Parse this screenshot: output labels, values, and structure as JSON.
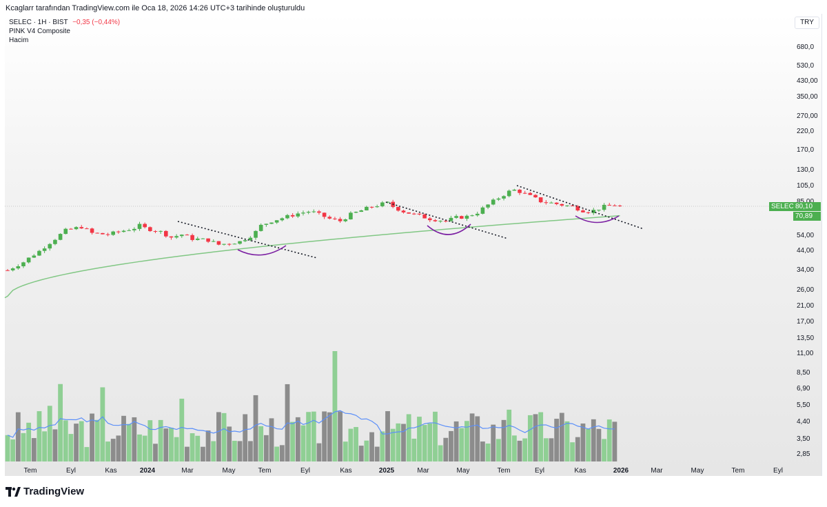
{
  "header": {
    "attribution": "Kcaglarr tarafından TradingView.com ile Oca 18, 2026 14:26 UTC+3 tarihinde oluşturuldu"
  },
  "legend": {
    "symbol_line": "SELEC · 1H · BIST",
    "change": "−0,35 (−0,44%)",
    "indicator_1": "PINK V4 Composite",
    "indicator_2": "Hacim"
  },
  "currency": "TRY",
  "price_axis": {
    "labels": [
      "680,0",
      "530,0",
      "430,00",
      "350,00",
      "270,00",
      "220,0",
      "170,0",
      "130,0",
      "105,0",
      "85,00",
      "54,00",
      "44,00",
      "34,00",
      "26,00",
      "21,00",
      "17,00",
      "13,50",
      "11,00",
      "8,50",
      "6,90",
      "5,50",
      "4,40",
      "3,50",
      "2,85"
    ],
    "symbol_tag": "SELEC",
    "last_price": "80,10",
    "ma_value": "70,89"
  },
  "time_axis": {
    "labels": [
      "Tem",
      "Eyl",
      "Kas",
      "2024",
      "Mar",
      "May",
      "Tem",
      "Eyl",
      "Kas",
      "2025",
      "Mar",
      "May",
      "Tem",
      "Eyl",
      "Kas",
      "2026",
      "Mar",
      "May",
      "Tem",
      "Eyl"
    ],
    "bold": [
      "2024",
      "2025",
      "2026"
    ]
  },
  "colors": {
    "up": "#4caf50",
    "down": "#f23645",
    "ma": "#81c784",
    "volume_up": "#8fcf94",
    "volume_down": "#8c8c8c",
    "volume_ma": "#5b8ff9",
    "arc": "#7b1fa2",
    "trendline": "#131722"
  },
  "chart_data": {
    "type": "candlestick",
    "symbol": "SELEC",
    "interval": "1H",
    "exchange": "BIST",
    "scale": "log",
    "series": [
      {
        "name": "SELEC",
        "description": "price path, weekly-style candles (approx.)",
        "path": [
          [
            0,
            34
          ],
          [
            3,
            38
          ],
          [
            6,
            44
          ],
          [
            9,
            52
          ],
          [
            11,
            58
          ],
          [
            13,
            60
          ],
          [
            14,
            61
          ],
          [
            16,
            56
          ],
          [
            19,
            55
          ],
          [
            22,
            58
          ],
          [
            24,
            60
          ],
          [
            25,
            62
          ],
          [
            26,
            60
          ],
          [
            29,
            57
          ],
          [
            31,
            53
          ],
          [
            33,
            55
          ],
          [
            35,
            52
          ],
          [
            38,
            51
          ],
          [
            40,
            48
          ],
          [
            42,
            49
          ],
          [
            44,
            50
          ],
          [
            46,
            54
          ],
          [
            47,
            57
          ],
          [
            48,
            62
          ],
          [
            50,
            66
          ],
          [
            53,
            70
          ],
          [
            55,
            73
          ],
          [
            57,
            75
          ],
          [
            58,
            74
          ],
          [
            61,
            68
          ],
          [
            63,
            66
          ],
          [
            65,
            72
          ],
          [
            67,
            76
          ],
          [
            69,
            80
          ],
          [
            71,
            83
          ],
          [
            72,
            84
          ],
          [
            73,
            80
          ],
          [
            75,
            75
          ],
          [
            77,
            72
          ],
          [
            80,
            68
          ],
          [
            83,
            66
          ],
          [
            85,
            69
          ],
          [
            87,
            70
          ],
          [
            89,
            74
          ],
          [
            91,
            82
          ],
          [
            93,
            90
          ],
          [
            95,
            98
          ],
          [
            96,
            100
          ],
          [
            97,
            98
          ],
          [
            99,
            92
          ],
          [
            101,
            86
          ],
          [
            103,
            84
          ],
          [
            105,
            82
          ],
          [
            107,
            80
          ],
          [
            109,
            76
          ],
          [
            110,
            75
          ],
          [
            111,
            76
          ],
          [
            113,
            80
          ],
          [
            115,
            82
          ],
          [
            116,
            80
          ]
        ]
      },
      {
        "name": "MA",
        "value_last": 70.89
      }
    ],
    "volume": {
      "name": "Hacim",
      "bars": [
        "u",
        "u",
        "d",
        "u",
        "u",
        "d",
        "u",
        "u",
        "u",
        "d",
        "u",
        "u",
        "u",
        "d",
        "u",
        "u",
        "d",
        "u",
        "u",
        "u",
        "d",
        "d",
        "d",
        "u",
        "d",
        "u",
        "u",
        "u",
        "d",
        "u",
        "d",
        "u",
        "u",
        "u",
        "d",
        "u",
        "u",
        "d",
        "d",
        "u",
        "d",
        "u",
        "d",
        "u",
        "d",
        "d",
        "d",
        "d",
        "u",
        "d",
        "d",
        "u",
        "d",
        "d",
        "u",
        "d",
        "u",
        "u",
        "u",
        "d",
        "d",
        "d",
        "u",
        "d",
        "u",
        "u",
        "u",
        "d",
        "u",
        "d",
        "d",
        "u",
        "d",
        "u",
        "u",
        "d",
        "u",
        "u",
        "u",
        "u",
        "u",
        "u",
        "u",
        "d",
        "d",
        "d",
        "u",
        "u",
        "d",
        "d",
        "d",
        "u",
        "d",
        "u",
        "d",
        "u",
        "u",
        "d",
        "u",
        "u",
        "d",
        "u",
        "u",
        "d",
        "d",
        "d",
        "u",
        "u",
        "d",
        "d",
        "u",
        "d",
        "d",
        "u",
        "u",
        "d"
      ]
    },
    "ylim": [
      2.6,
      900
    ],
    "annotations": [
      "descending trendlines",
      "cup arcs"
    ]
  }
}
